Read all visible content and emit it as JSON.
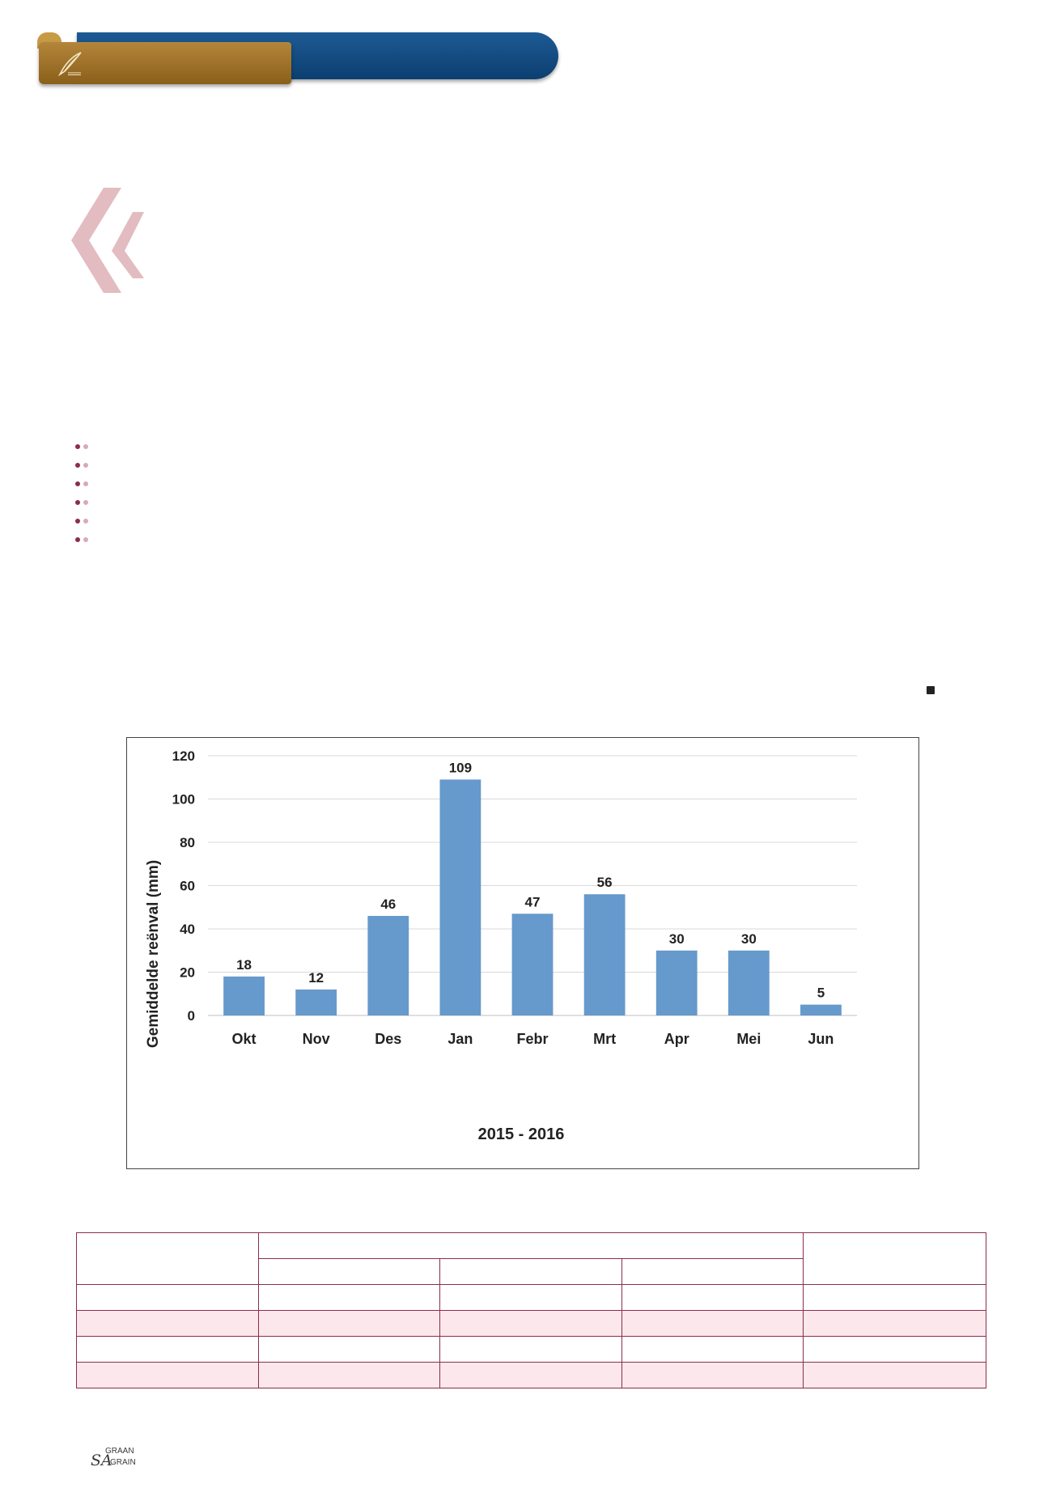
{
  "colors": {
    "banner_blue": "#0c3f70",
    "banner_gold": "#a07430",
    "accent": "#8b2d4c",
    "bar": "#6699cc",
    "gridline": "#d9d9d9"
  },
  "icons": {
    "banner_logo": "feather-quill-icon",
    "quote_mark": "double-chevron-quote-icon",
    "bullet": "double-dot-bullet-icon",
    "end_marker": "square-end-icon"
  },
  "bullets_count_note": "six bullet markers",
  "footer": {
    "brand_prefix": "SA",
    "brand_line1": "GRAAN",
    "brand_line2": "GRAIN"
  },
  "chart_data": {
    "type": "bar",
    "categories": [
      "Okt",
      "Nov",
      "Des",
      "Jan",
      "Febr",
      "Mrt",
      "Apr",
      "Mei",
      "Jun"
    ],
    "values": [
      18,
      12,
      46,
      109,
      47,
      56,
      30,
      30,
      5
    ],
    "xlabel": "2015 - 2016",
    "ylabel": "Gemiddelde reënval (mm)",
    "ylim": [
      0,
      120
    ],
    "yticks": [
      0,
      20,
      40,
      60,
      80,
      100,
      120
    ],
    "grid": true,
    "data_labels": true
  },
  "table": {
    "rows": 6,
    "columns": 5
  }
}
